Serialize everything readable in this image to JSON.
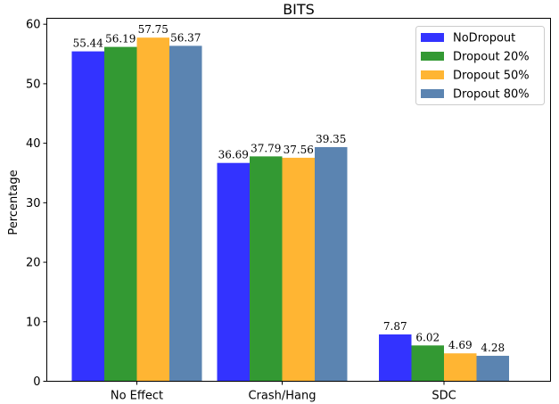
{
  "chart_data": {
    "type": "bar",
    "title": "BITS",
    "xlabel": "",
    "ylabel": "Percentage",
    "ylim": [
      0,
      61
    ],
    "yticks": [
      0,
      10,
      20,
      30,
      40,
      50,
      60
    ],
    "grid": false,
    "legend_position": "top-right",
    "categories": [
      "No Effect",
      "Crash/Hang",
      "SDC"
    ],
    "series": [
      {
        "name": "NoDropout",
        "color": "#3333ff",
        "values": [
          55.44,
          36.69,
          7.87
        ],
        "labels": [
          "55.44",
          "36.69",
          "7.87"
        ]
      },
      {
        "name": "Dropout 20%",
        "color": "#339933",
        "values": [
          56.19,
          37.79,
          6.02
        ],
        "labels": [
          "56.19",
          "37.79",
          "6.02"
        ]
      },
      {
        "name": "Dropout 50%",
        "color": "#ffb533",
        "values": [
          57.75,
          37.56,
          4.69
        ],
        "labels": [
          "57.75",
          "37.56",
          "4.69"
        ]
      },
      {
        "name": "Dropout 80%",
        "color": "#5b84b1",
        "values": [
          56.37,
          39.35,
          4.28
        ],
        "labels": [
          "56.37",
          "39.35",
          "4.28"
        ]
      }
    ]
  }
}
